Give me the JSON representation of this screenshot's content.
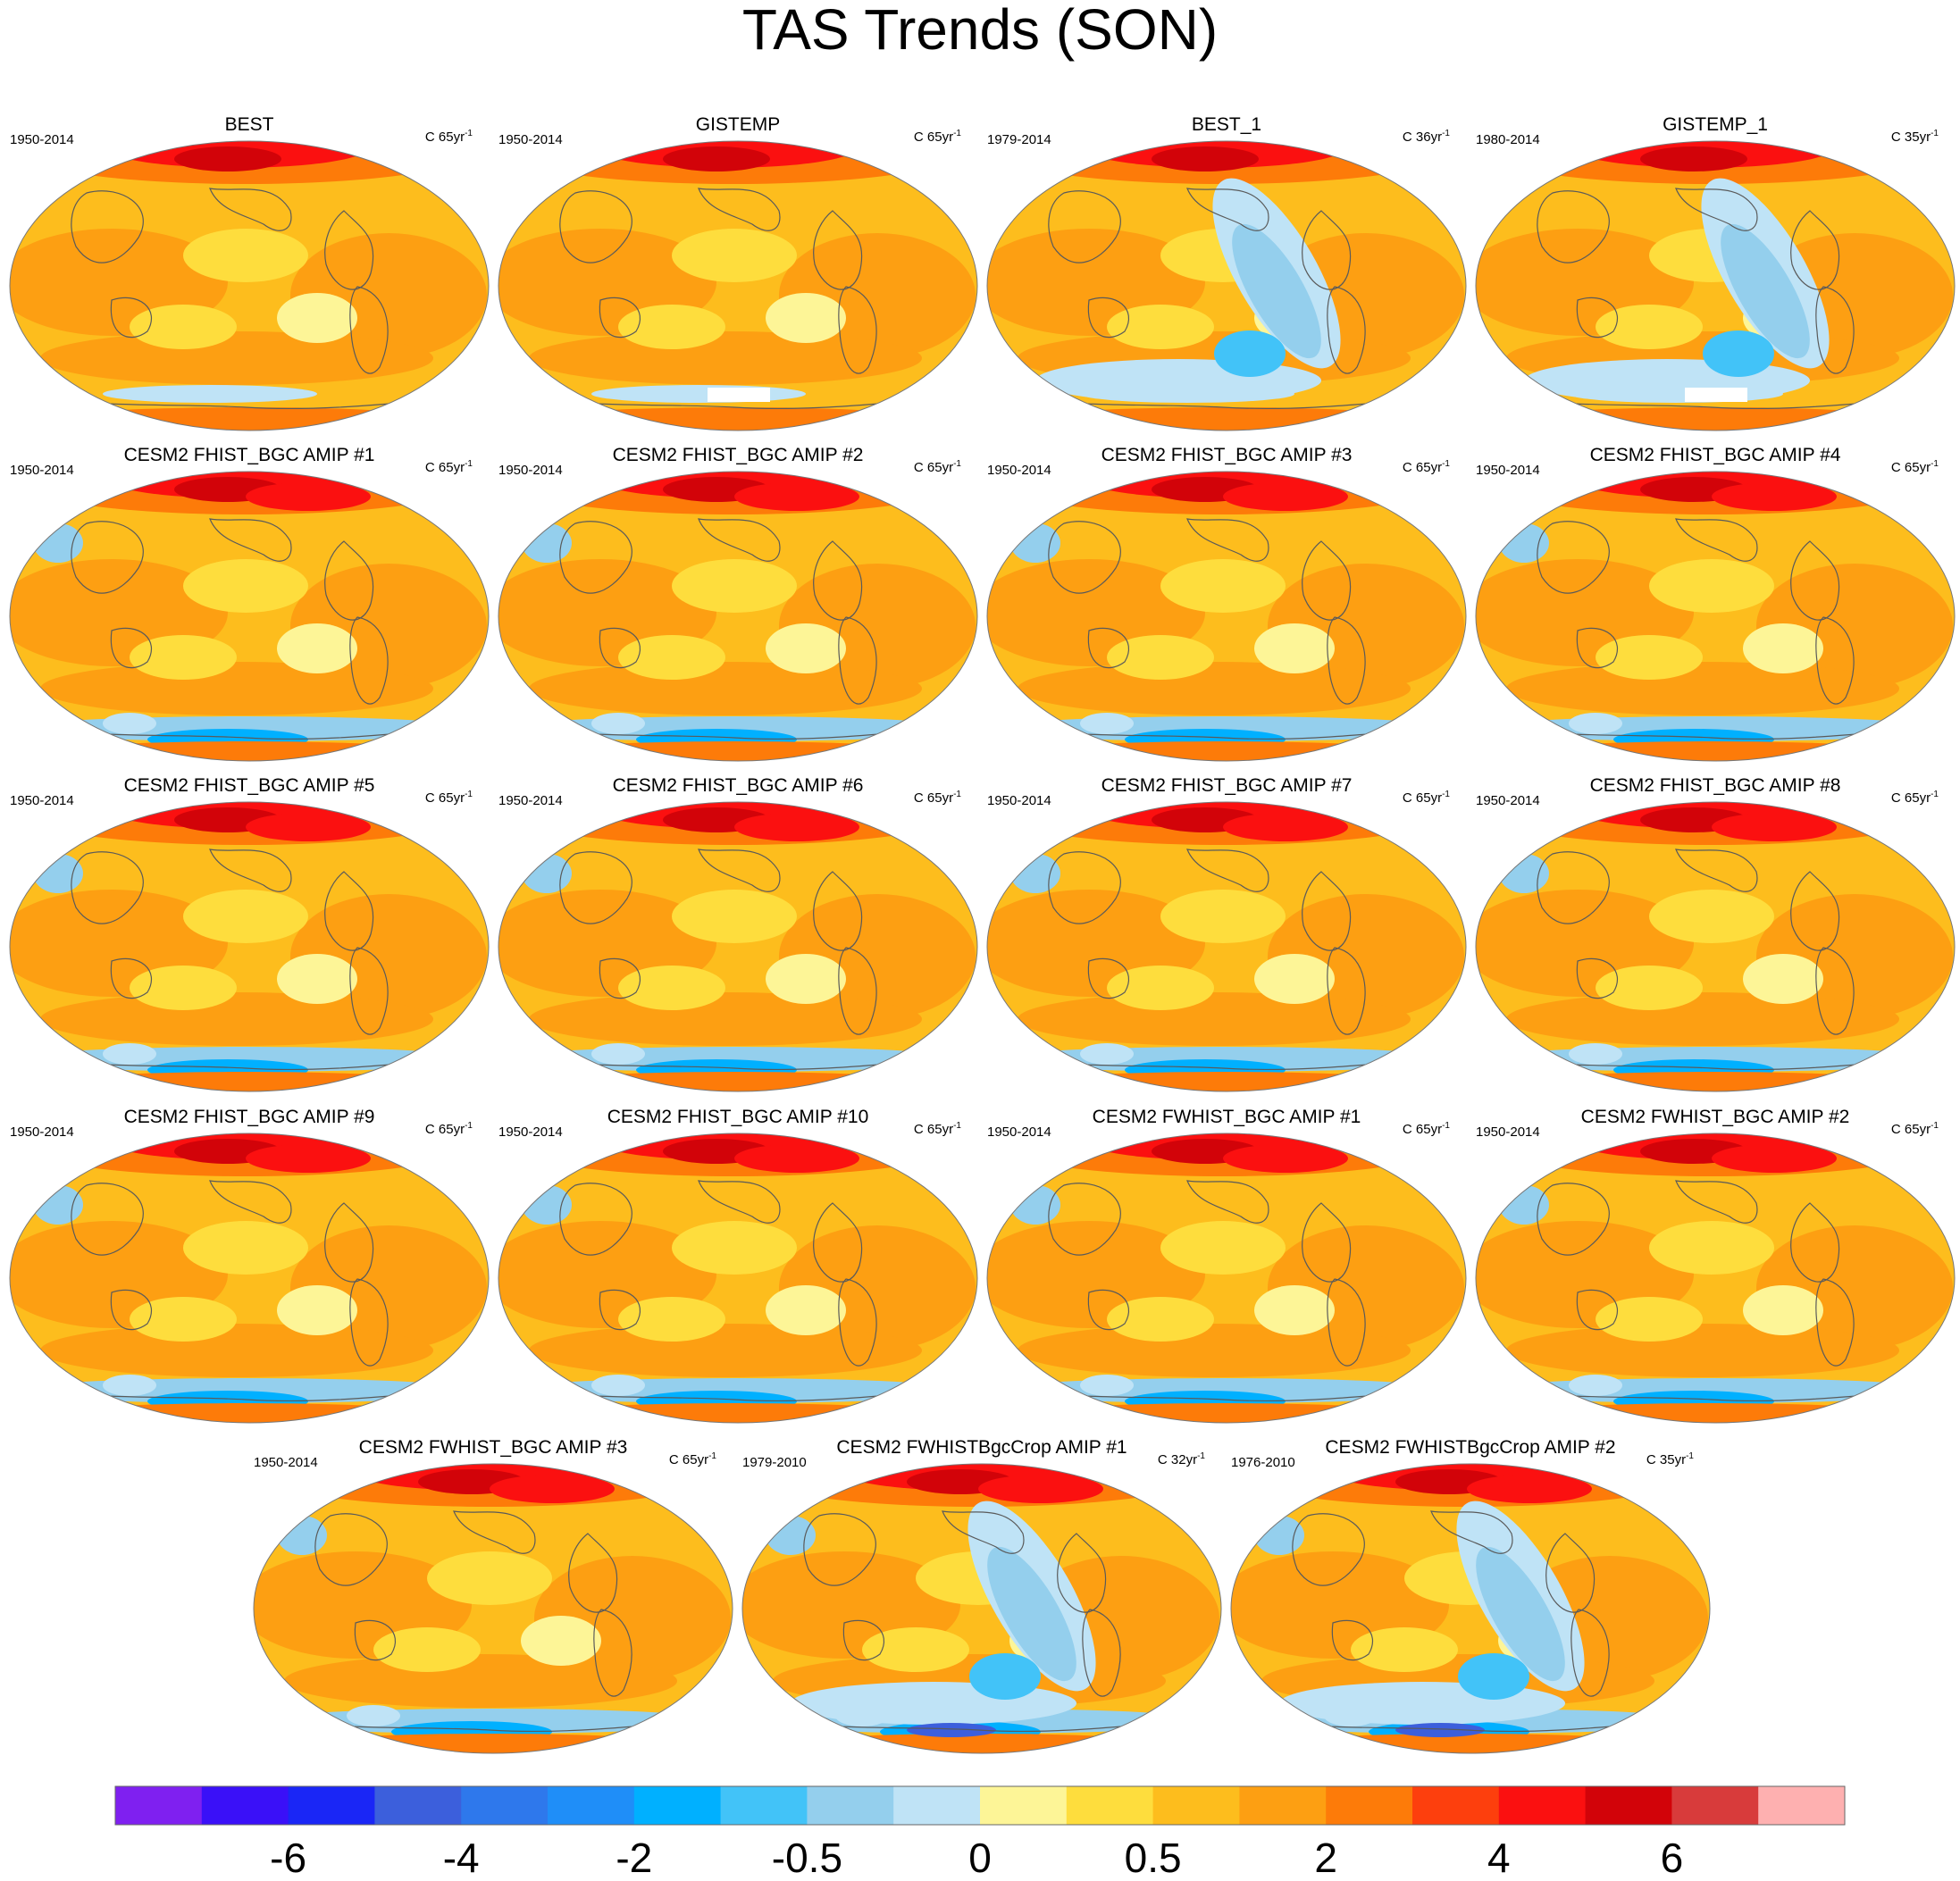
{
  "title": "TAS Trends (SON)",
  "panels": [
    {
      "title": "BEST",
      "period": "1950-2014",
      "units_prefix": "C 65yr",
      "units_exp": "-1",
      "pattern": "obs_long",
      "palette": "fill"
    },
    {
      "title": "GISTEMP",
      "period": "1950-2014",
      "units_prefix": "C 65yr",
      "units_exp": "-1",
      "pattern": "obs_long_missing",
      "palette": "fill"
    },
    {
      "title": "BEST_1",
      "period": "1979-2014",
      "units_prefix": "C 36yr",
      "units_exp": "-1",
      "pattern": "obs_short",
      "palette": "fill"
    },
    {
      "title": "GISTEMP_1",
      "period": "1980-2014",
      "units_prefix": "C 35yr",
      "units_exp": "-1",
      "pattern": "obs_short_missing",
      "palette": "fill"
    },
    {
      "title": "CESM2 FHIST_BGC AMIP #1",
      "period": "1950-2014",
      "units_prefix": "C 65yr",
      "units_exp": "-1",
      "pattern": "model",
      "palette": "fill"
    },
    {
      "title": "CESM2 FHIST_BGC AMIP #2",
      "period": "1950-2014",
      "units_prefix": "C 65yr",
      "units_exp": "-1",
      "pattern": "model",
      "palette": "fill"
    },
    {
      "title": "CESM2 FHIST_BGC AMIP #3",
      "period": "1950-2014",
      "units_prefix": "C 65yr",
      "units_exp": "-1",
      "pattern": "model",
      "palette": "fill"
    },
    {
      "title": "CESM2 FHIST_BGC AMIP #4",
      "period": "1950-2014",
      "units_prefix": "C 65yr",
      "units_exp": "-1",
      "pattern": "model",
      "palette": "fill"
    },
    {
      "title": "CESM2 FHIST_BGC AMIP #5",
      "period": "1950-2014",
      "units_prefix": "C 65yr",
      "units_exp": "-1",
      "pattern": "model",
      "palette": "fill"
    },
    {
      "title": "CESM2 FHIST_BGC AMIP #6",
      "period": "1950-2014",
      "units_prefix": "C 65yr",
      "units_exp": "-1",
      "pattern": "model",
      "palette": "fill"
    },
    {
      "title": "CESM2 FHIST_BGC AMIP #7",
      "period": "1950-2014",
      "units_prefix": "C 65yr",
      "units_exp": "-1",
      "pattern": "model",
      "palette": "fill"
    },
    {
      "title": "CESM2 FHIST_BGC AMIP #8",
      "period": "1950-2014",
      "units_prefix": "C 65yr",
      "units_exp": "-1",
      "pattern": "model",
      "palette": "fill"
    },
    {
      "title": "CESM2 FHIST_BGC AMIP #9",
      "period": "1950-2014",
      "units_prefix": "C 65yr",
      "units_exp": "-1",
      "pattern": "model",
      "palette": "fill"
    },
    {
      "title": "CESM2 FHIST_BGC AMIP #10",
      "period": "1950-2014",
      "units_prefix": "C 65yr",
      "units_exp": "-1",
      "pattern": "model",
      "palette": "fill"
    },
    {
      "title": "CESM2 FWHIST_BGC AMIP #1",
      "period": "1950-2014",
      "units_prefix": "C 65yr",
      "units_exp": "-1",
      "pattern": "model",
      "palette": "fill"
    },
    {
      "title": "CESM2 FWHIST_BGC AMIP #2",
      "period": "1950-2014",
      "units_prefix": "C 65yr",
      "units_exp": "-1",
      "pattern": "model",
      "palette": "fill"
    },
    {
      "title": "CESM2 FWHIST_BGC AMIP #3",
      "period": "1950-2014",
      "units_prefix": "C 65yr",
      "units_exp": "-1",
      "pattern": "model",
      "palette": "fill"
    },
    {
      "title": "CESM2 FWHISTBgcCrop AMIP #1",
      "period": "1979-2010",
      "units_prefix": "C 32yr",
      "units_exp": "-1",
      "pattern": "model_short",
      "palette": "fill"
    },
    {
      "title": "CESM2 FWHISTBgcCrop AMIP #2",
      "period": "1976-2010",
      "units_prefix": "C 35yr",
      "units_exp": "-1",
      "pattern": "model_short",
      "palette": "fill"
    }
  ],
  "colorbar": {
    "colors": [
      "#7f20f0",
      "#3a10f8",
      "#1a26f6",
      "#3c5fdc",
      "#2e78ec",
      "#1f8ef8",
      "#00b0ff",
      "#42c3f8",
      "#94cfed",
      "#bfe3f6",
      "#fdf597",
      "#fedd3d",
      "#fdbd1d",
      "#fd9f12",
      "#fd7b09",
      "#fd3f0d",
      "#fb1010",
      "#d20309",
      "#d83b3b",
      "#feb0b0"
    ],
    "tick_labels": [
      "-6",
      "-4",
      "-2",
      "-0.5",
      "0",
      "0.5",
      "2",
      "4",
      "6"
    ],
    "levels": [
      -8,
      -6,
      -5,
      -4,
      -3,
      -2,
      -1,
      -0.5,
      -0.2,
      0,
      0.2,
      0.5,
      1,
      2,
      3,
      4,
      5,
      6,
      8
    ]
  }
}
